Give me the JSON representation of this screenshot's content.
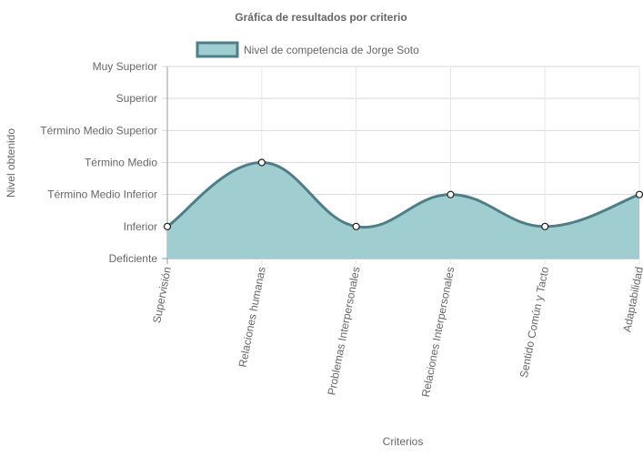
{
  "chart_data": {
    "type": "area",
    "title": "Gráfica de resultados por criterio",
    "xlabel": "Criterios",
    "ylabel": "Nivel obtenido",
    "y_levels": [
      "Deficiente",
      "Inferior",
      "Término Medio Inferior",
      "Término Medio",
      "Término Medio Superior",
      "Superior",
      "Muy Superior"
    ],
    "ylim": [
      0,
      6
    ],
    "categories": [
      "Supervisión",
      "Relaciones humanas",
      "Problemas Interpersonales",
      "Relaciones Interpersonales",
      "Sentido Común y Tacto",
      "Adaptabilidad"
    ],
    "series": [
      {
        "name": "Nivel de competencia de Jorge Soto",
        "values": [
          1,
          3,
          1,
          2,
          1,
          2
        ],
        "value_labels": [
          "Inferior",
          "Término Medio",
          "Inferior",
          "Término Medio Inferior",
          "Inferior",
          "Término Medio Inferior"
        ],
        "fill_color": "#a0cdd0",
        "line_color": "#4d7f88"
      }
    ],
    "grid": true,
    "legend_position": "top",
    "curve": "smooth"
  }
}
